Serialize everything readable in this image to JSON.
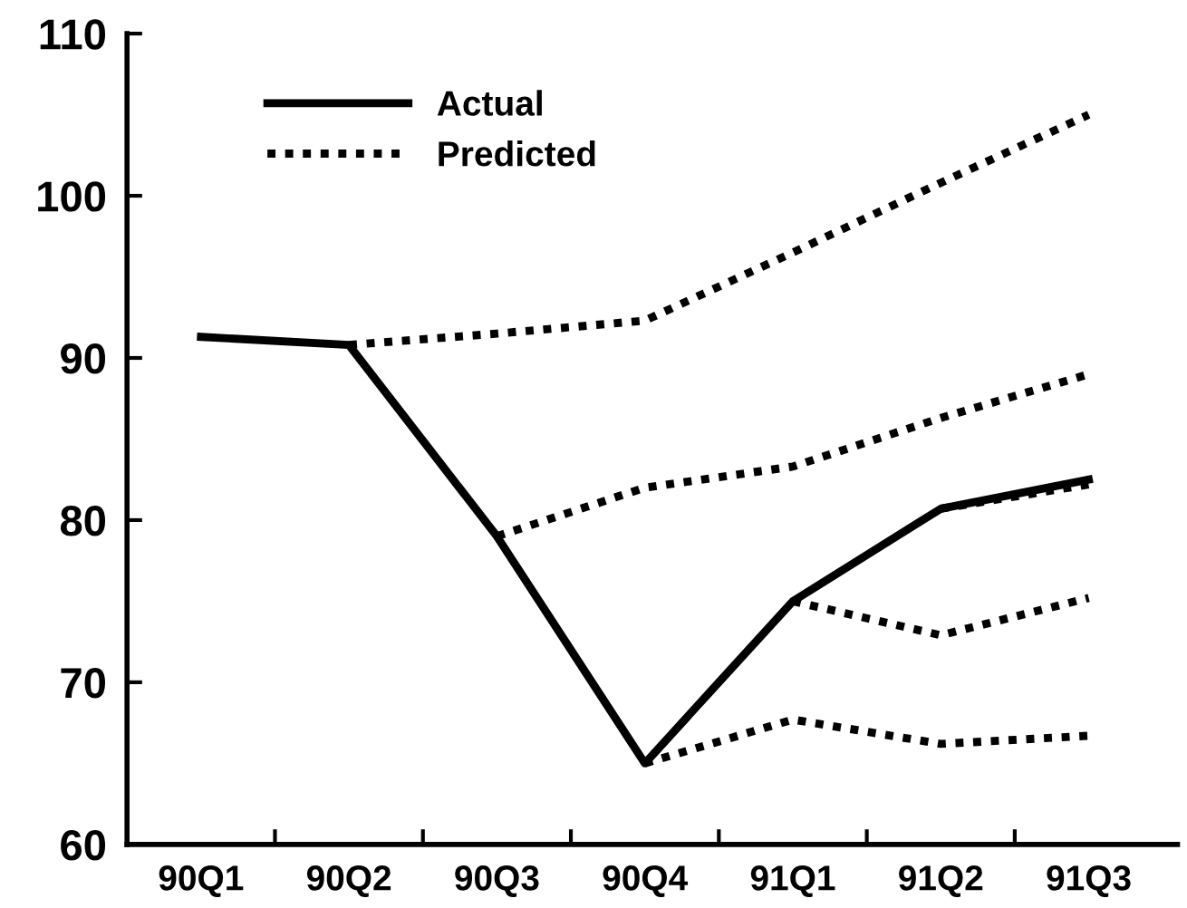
{
  "chart_data": {
    "type": "line",
    "categories": [
      "90Q1",
      "90Q2",
      "90Q3",
      "90Q4",
      "91Q1",
      "91Q2",
      "91Q3"
    ],
    "series": [
      {
        "name": "Actual",
        "color": "#000000",
        "line_style": "solid",
        "values": [
          91.3,
          90.8,
          79,
          65,
          75,
          80.7,
          82.5
        ]
      },
      {
        "name": "Predicted",
        "color": "#000000",
        "line_style": "dotted",
        "values": [
          null,
          90.8,
          91.5,
          92.3,
          96.5,
          100.8,
          105
        ]
      },
      {
        "color": "#000000",
        "line_style": "dotted",
        "values": [
          null,
          null,
          79,
          82,
          83.3,
          86.3,
          89
        ]
      },
      {
        "color": "#000000",
        "line_style": "dotted",
        "values": [
          null,
          null,
          null,
          65,
          67.7,
          66.2,
          66.7
        ]
      },
      {
        "color": "#000000",
        "line_style": "dotted",
        "values": [
          null,
          null,
          null,
          null,
          75,
          72.9,
          75.2
        ]
      },
      {
        "color": "#000000",
        "line_style": "dotted",
        "values": [
          null,
          null,
          null,
          null,
          null,
          80.7,
          82.2
        ]
      }
    ],
    "ylim": [
      60,
      110
    ],
    "yticks": [
      60,
      70,
      80,
      90,
      100,
      110
    ],
    "legend": "top left",
    "grid": false,
    "marker": "none"
  }
}
